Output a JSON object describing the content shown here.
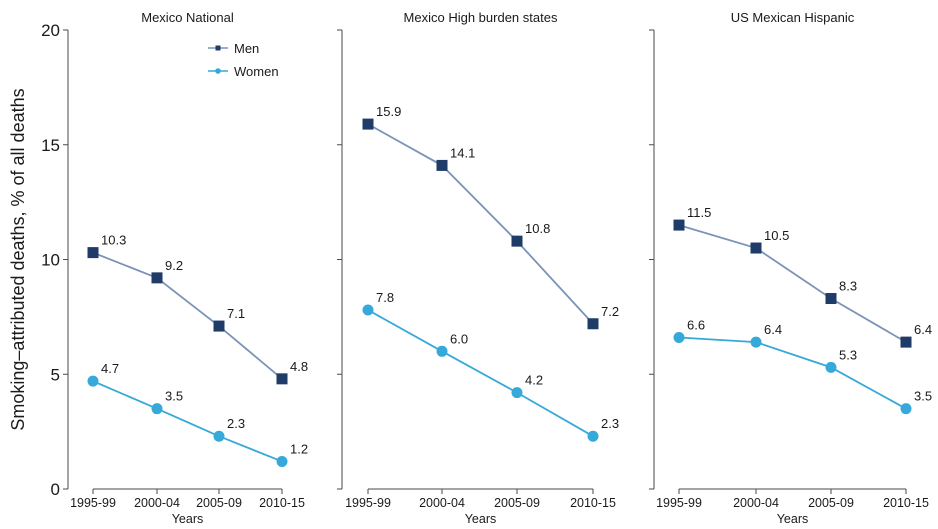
{
  "chart_data": {
    "type": "line",
    "ylabel": "Smoking–attributed deaths, % of all deaths",
    "ylim": [
      0,
      20
    ],
    "yticks": [
      0,
      5,
      10,
      15,
      20
    ],
    "grid": false,
    "legend": {
      "placement": "top-right of first panel",
      "entries": [
        {
          "name": "Men",
          "color": "#1f3b68",
          "marker": "square"
        },
        {
          "name": "Women",
          "color": "#35a9d9",
          "marker": "circle"
        }
      ]
    },
    "panels": [
      {
        "title": "Mexico National",
        "xlabel": "Years",
        "categories": [
          "1995-99",
          "2000-04",
          "2005-09",
          "2010-15"
        ],
        "series": [
          {
            "name": "Men",
            "values": [
              10.3,
              9.2,
              7.1,
              4.8
            ],
            "labels": [
              "10.3",
              "9.2",
              "7.1",
              "4.8"
            ]
          },
          {
            "name": "Women",
            "values": [
              4.7,
              3.5,
              2.3,
              1.2
            ],
            "labels": [
              "4.7",
              "3.5",
              "2.3",
              "1.2"
            ]
          }
        ]
      },
      {
        "title": "Mexico High burden states",
        "xlabel": "Years",
        "categories": [
          "1995-99",
          "2000-04",
          "2005-09",
          "2010-15"
        ],
        "series": [
          {
            "name": "Men",
            "values": [
              15.9,
              14.1,
              10.8,
              7.2
            ],
            "labels": [
              "15.9",
              "14.1",
              "10.8",
              "7.2"
            ]
          },
          {
            "name": "Women",
            "values": [
              7.8,
              6.0,
              4.2,
              2.3
            ],
            "labels": [
              "7.8",
              "6.0",
              "4.2",
              "2.3"
            ]
          }
        ]
      },
      {
        "title": "US Mexican Hispanic",
        "xlabel": "Years",
        "categories": [
          "1995-99",
          "2000-04",
          "2005-09",
          "2010-15"
        ],
        "series": [
          {
            "name": "Men",
            "values": [
              11.5,
              10.5,
              8.3,
              6.4
            ],
            "labels": [
              "11.5",
              "10.5",
              "8.3",
              "6.4"
            ]
          },
          {
            "name": "Women",
            "values": [
              6.6,
              6.4,
              5.3,
              3.5
            ],
            "labels": [
              "6.6",
              "6.4",
              "5.3",
              "3.5"
            ]
          }
        ]
      }
    ]
  },
  "colors": {
    "men_line": "#7b93b8",
    "men_marker": "#1f3b68",
    "women_line": "#35a9d9",
    "women_marker": "#35a9d9",
    "axis": "#4a4a4a"
  }
}
